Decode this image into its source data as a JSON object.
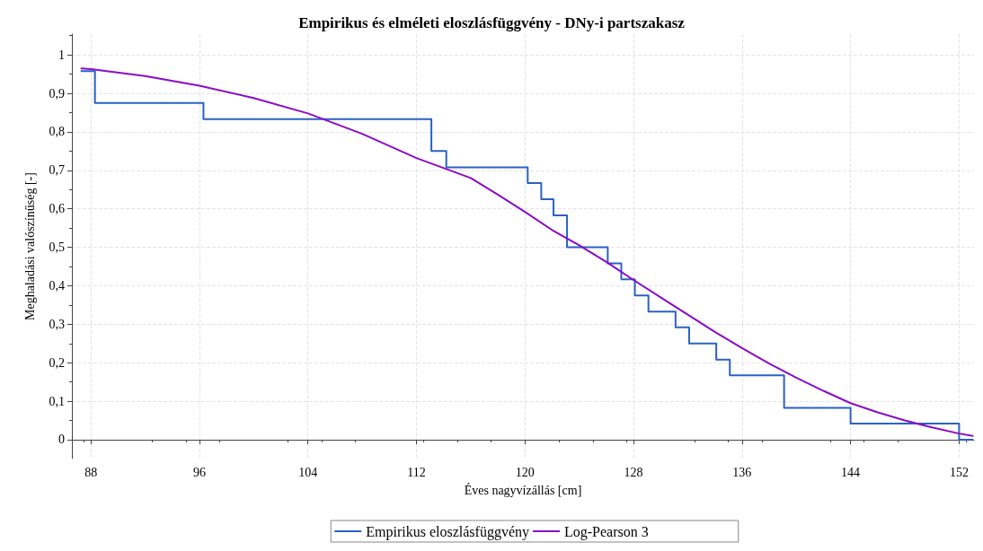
{
  "chart_data": {
    "type": "line",
    "title": "Empirikus és elméleti eloszlásfüggvény - DNy-i partszakasz",
    "xlabel": "Éves nagyvízállás [cm]",
    "ylabel": "Meghaladási valószínűség [-]",
    "xlim": [
      86.6,
      153.1
    ],
    "xticks": [
      88,
      96,
      104,
      112,
      120,
      128,
      136,
      144,
      152
    ],
    "ylim": [
      -0.049,
      1.054
    ],
    "yticks": [
      {
        "value": 0,
        "label": "0"
      },
      {
        "value": 0.1,
        "label": "0,1"
      },
      {
        "value": 0.2,
        "label": "0,2"
      },
      {
        "value": 0.3,
        "label": "0,3"
      },
      {
        "value": 0.4,
        "label": "0,4"
      },
      {
        "value": 0.5,
        "label": "0,5"
      },
      {
        "value": 0.6,
        "label": "0,6"
      },
      {
        "value": 0.7,
        "label": "0,7"
      },
      {
        "value": 0.8,
        "label": "0,8"
      },
      {
        "value": 0.9,
        "label": "0,9"
      },
      {
        "value": 1,
        "label": "1"
      }
    ],
    "grid": true,
    "legend": "bottom",
    "marker": "none",
    "line_style": "solid",
    "series": [
      {
        "name": "Empirikus eloszlásfüggvény",
        "type": "step",
        "color": "#2a62c4",
        "x": [
          87.3,
          88.3,
          96.3,
          113.1,
          114.2,
          120.2,
          121.2,
          122.1,
          123.1,
          126.1,
          127.1,
          128.1,
          129.1,
          131.1,
          132.1,
          134.1,
          135.1,
          139.1,
          144.0,
          152.0,
          153.0
        ],
        "values": [
          0.958,
          0.875,
          0.833,
          0.75,
          0.708,
          0.667,
          0.625,
          0.583,
          0.5,
          0.458,
          0.417,
          0.375,
          0.333,
          0.292,
          0.25,
          0.208,
          0.167,
          0.083,
          0.042,
          0,
          0
        ]
      },
      {
        "name": "Log-Pearson 3",
        "color": "#8a0bc8",
        "x": [
          87.3,
          88,
          92,
          96,
          100,
          104,
          108,
          112,
          116,
          118,
          120,
          122,
          124,
          126,
          128,
          130,
          132,
          134,
          136,
          138,
          140,
          142,
          144,
          146,
          148,
          150,
          152,
          153
        ],
        "values": [
          0.965,
          0.963,
          0.945,
          0.92,
          0.888,
          0.848,
          0.795,
          0.732,
          0.68,
          0.637,
          0.592,
          0.545,
          0.505,
          0.462,
          0.415,
          0.37,
          0.325,
          0.28,
          0.238,
          0.198,
          0.161,
          0.127,
          0.095,
          0.071,
          0.05,
          0.032,
          0.016,
          0.01
        ]
      }
    ]
  }
}
